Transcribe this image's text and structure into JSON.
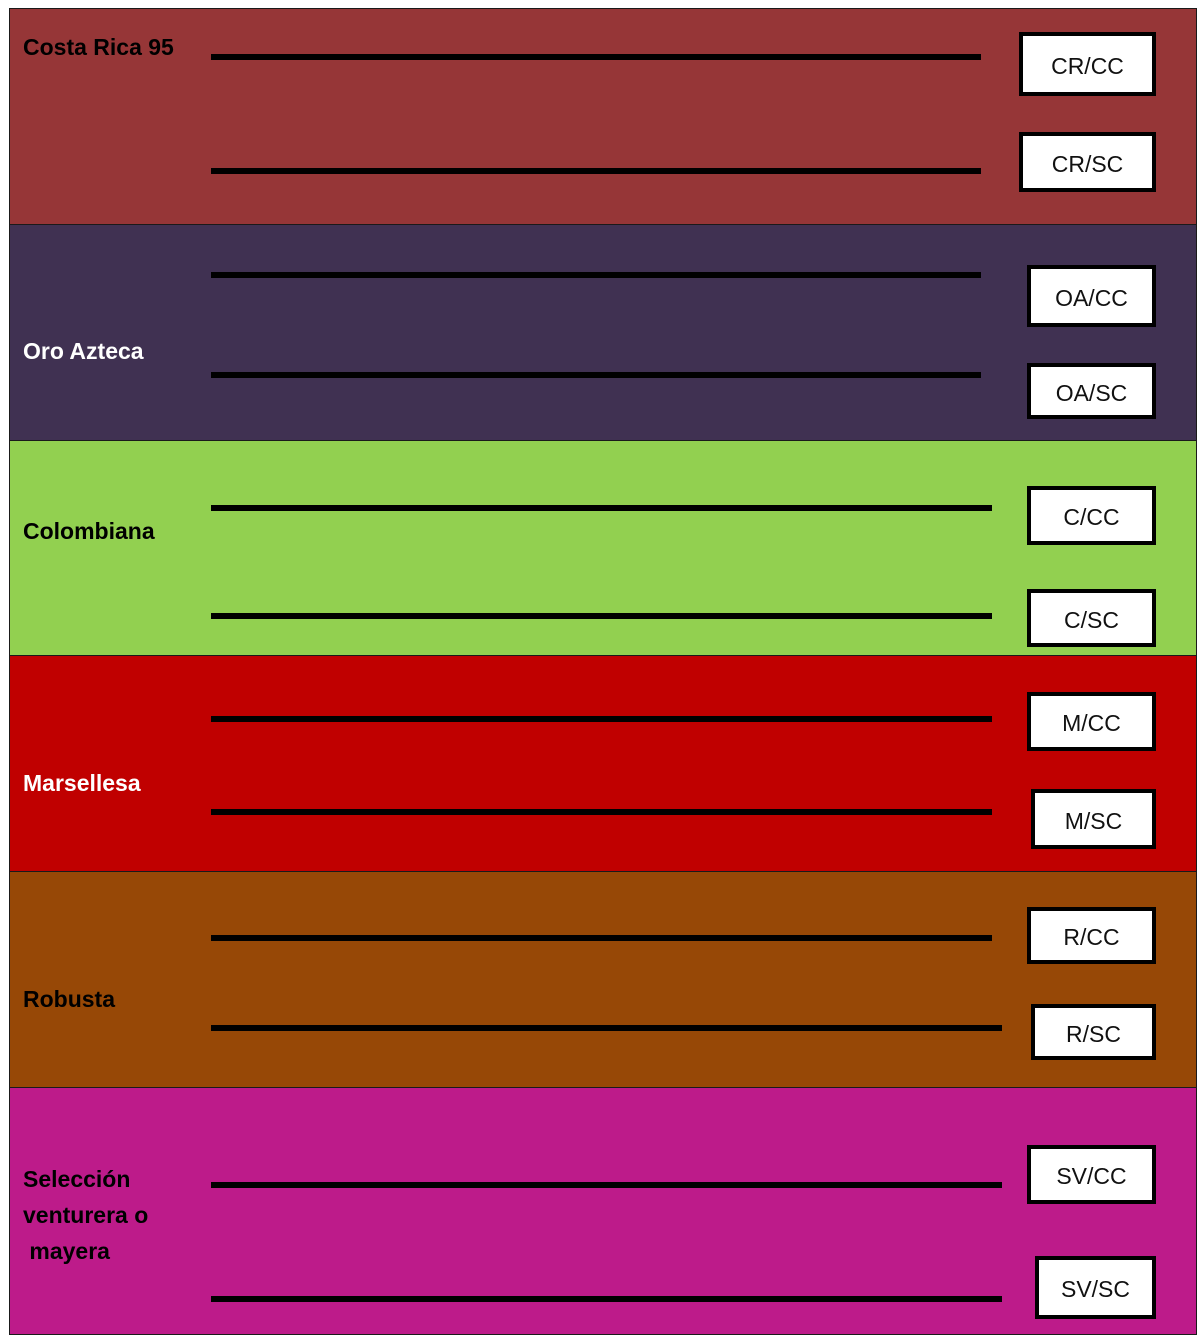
{
  "varieties": [
    {
      "name": "Costa Rica 95",
      "color": "#963637",
      "text_color": "#000000",
      "tags": [
        "CR/CC",
        "CR/SC"
      ]
    },
    {
      "name": "Oro Azteca",
      "color": "#403152",
      "text_color": "#ffffff",
      "tags": [
        "OA/CC",
        "OA/SC"
      ]
    },
    {
      "name": "Colombiana",
      "color": "#92d050",
      "text_color": "#000000",
      "tags": [
        "C/CC",
        "C/SC"
      ]
    },
    {
      "name": "Marsellesa",
      "color": "#c00000",
      "text_color": "#ffffff",
      "tags": [
        "M/CC",
        "M/SC"
      ]
    },
    {
      "name": "Robusta",
      "color": "#974806",
      "text_color": "#000000",
      "tags": [
        "R/CC",
        "R/SC"
      ]
    },
    {
      "name": "Selección\nventurera o\n mayera",
      "color": "#bd1b8a",
      "text_color": "#000000",
      "tags": [
        "SV/CC",
        "SV/SC"
      ]
    }
  ]
}
